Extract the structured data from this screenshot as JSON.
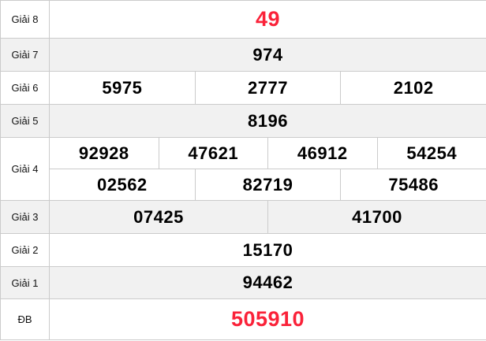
{
  "table": {
    "title_semantic": "lottery-results",
    "rows": [
      {
        "label": "Giải 8",
        "lines": [
          [
            "49"
          ]
        ],
        "highlight": true,
        "shaded": false
      },
      {
        "label": "Giải 7",
        "lines": [
          [
            "974"
          ]
        ],
        "highlight": false,
        "shaded": true
      },
      {
        "label": "Giải 6",
        "lines": [
          [
            "5975",
            "2777",
            "2102"
          ]
        ],
        "highlight": false,
        "shaded": false
      },
      {
        "label": "Giải 5",
        "lines": [
          [
            "8196"
          ]
        ],
        "highlight": false,
        "shaded": true
      },
      {
        "label": "Giải 4",
        "lines": [
          [
            "92928",
            "47621",
            "46912",
            "54254"
          ],
          [
            "02562",
            "82719",
            "75486"
          ]
        ],
        "highlight": false,
        "shaded": false
      },
      {
        "label": "Giải 3",
        "lines": [
          [
            "07425",
            "41700"
          ]
        ],
        "highlight": false,
        "shaded": true
      },
      {
        "label": "Giải 2",
        "lines": [
          [
            "15170"
          ]
        ],
        "highlight": false,
        "shaded": false
      },
      {
        "label": "Giải 1",
        "lines": [
          [
            "94462"
          ]
        ],
        "highlight": false,
        "shaded": true
      },
      {
        "label": "ĐB",
        "lines": [
          [
            "505910"
          ]
        ],
        "highlight": true,
        "shaded": false
      }
    ]
  },
  "colors": {
    "highlight_red": "#fa2239",
    "shaded_bg": "#f1f1f1",
    "border": "#cbcbcb",
    "number_black": "#000000",
    "label_color": "#111111"
  }
}
